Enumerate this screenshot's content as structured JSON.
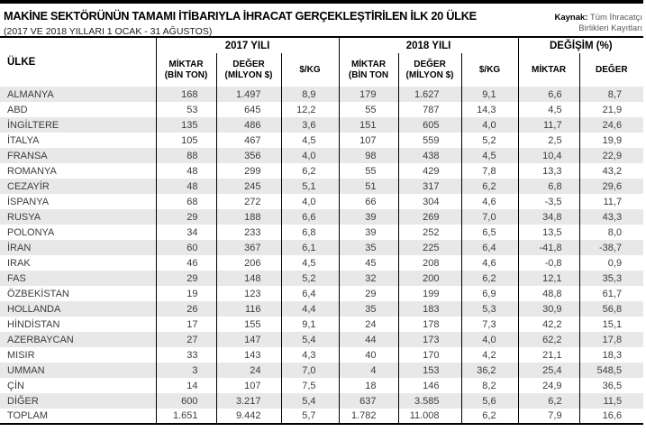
{
  "page": {
    "title": "MAKİNE SEKTÖRÜNÜN TAMAMI İTİBARIYLA İHRACAT GERÇEKLEŞTİRİLEN İLK 20 ÜLKE",
    "subtitle": "(2017 VE 2018 YILLARI 1 OCAK - 31 AĞUSTOS)",
    "source_label": "Kaynak:",
    "source_line1": "Tüm İhracatçı",
    "source_line2": "Birlikleri Kayıtları"
  },
  "colors": {
    "topbar": "#000000",
    "row_alt": "#e8e8e8",
    "border": "#000000",
    "body_text": "#3c3c3c",
    "source_text": "#58595b"
  },
  "chart_data": {
    "type": "table",
    "title": "MAKİNE SEKTÖRÜNÜN TAMAMI İTİBARIYLA İHRACAT GERÇEKLEŞTİRİLEN İLK 20 ÜLKE",
    "row_header": "ÜLKE",
    "column_groups": [
      {
        "label": "2017 YILI",
        "span": 3
      },
      {
        "label": "2018 YILI",
        "span": 3
      },
      {
        "label": "DEĞİŞİM (%)",
        "span": 2
      }
    ],
    "sub_headers": [
      {
        "line1": "MİKTAR",
        "line2": "(BİN TON)"
      },
      {
        "line1": "DEĞER",
        "line2": "(MİLYON $)"
      },
      {
        "line1": "$/KG",
        "line2": ""
      },
      {
        "line1": "MİKTAR",
        "line2": "(BİN TON"
      },
      {
        "line1": "DEĞER",
        "line2": "(MİLYON $)"
      },
      {
        "line1": "$/KG",
        "line2": ""
      },
      {
        "line1": "MİKTAR",
        "line2": ""
      },
      {
        "line1": "DEĞER",
        "line2": ""
      }
    ],
    "rows": [
      [
        "ALMANYA",
        "168",
        "1.497",
        "8,9",
        "179",
        "1.627",
        "9,1",
        "6,6",
        "8,7"
      ],
      [
        "ABD",
        "53",
        "645",
        "12,2",
        "55",
        "787",
        "14,3",
        "4,5",
        "21,9"
      ],
      [
        "İNGİLTERE",
        "135",
        "486",
        "3,6",
        "151",
        "605",
        "4,0",
        "11,7",
        "24,6"
      ],
      [
        "İTALYA",
        "105",
        "467",
        "4,5",
        "107",
        "559",
        "5,2",
        "2,5",
        "19,9"
      ],
      [
        "FRANSA",
        "88",
        "356",
        "4,0",
        "98",
        "438",
        "4,5",
        "10,4",
        "22,9"
      ],
      [
        "ROMANYA",
        "48",
        "299",
        "6,2",
        "55",
        "429",
        "7,8",
        "13,3",
        "43,2"
      ],
      [
        "CEZAYİR",
        "48",
        "245",
        "5,1",
        "51",
        "317",
        "6,2",
        "6,8",
        "29,6"
      ],
      [
        "İSPANYA",
        "68",
        "272",
        "4,0",
        "66",
        "304",
        "4,6",
        "-3,5",
        "11,7"
      ],
      [
        "RUSYA",
        "29",
        "188",
        "6,6",
        "39",
        "269",
        "7,0",
        "34,8",
        "43,3"
      ],
      [
        "POLONYA",
        "34",
        "233",
        "6,8",
        "39",
        "252",
        "6,5",
        "13,5",
        "8,0"
      ],
      [
        "İRAN",
        "60",
        "367",
        "6,1",
        "35",
        "225",
        "6,4",
        "-41,8",
        "-38,7"
      ],
      [
        "IRAK",
        "46",
        "206",
        "4,5",
        "45",
        "208",
        "4,6",
        "-0,8",
        "0,9"
      ],
      [
        "FAS",
        "29",
        "148",
        "5,2",
        "32",
        "200",
        "6,2",
        "12,1",
        "35,3"
      ],
      [
        "ÖZBEKİSTAN",
        "19",
        "123",
        "6,4",
        "29",
        "199",
        "6,9",
        "48,8",
        "61,7"
      ],
      [
        "HOLLANDA",
        "26",
        "116",
        "4,4",
        "35",
        "183",
        "5,3",
        "30,9",
        "56,8"
      ],
      [
        "HİNDİSTAN",
        "17",
        "155",
        "9,1",
        "24",
        "178",
        "7,3",
        "42,2",
        "15,1"
      ],
      [
        "AZERBAYCAN",
        "27",
        "147",
        "5,4",
        "44",
        "173",
        "4,0",
        "62,2",
        "17,8"
      ],
      [
        "MISIR",
        "33",
        "143",
        "4,3",
        "40",
        "170",
        "4,2",
        "21,1",
        "18,3"
      ],
      [
        "UMMAN",
        "3",
        "24",
        "7,0",
        "4",
        "153",
        "36,2",
        "25,4",
        "548,5"
      ],
      [
        "ÇİN",
        "14",
        "107",
        "7,5",
        "18",
        "146",
        "8,2",
        "24,9",
        "36,5"
      ],
      [
        "DİĞER",
        "600",
        "3.217",
        "5,4",
        "637",
        "3.585",
        "5,6",
        "6,2",
        "11,5"
      ],
      [
        "TOPLAM",
        "1.651",
        "9.442",
        "5,7",
        "1.782",
        "11.008",
        "6,2",
        "7,9",
        "16,6"
      ]
    ]
  }
}
